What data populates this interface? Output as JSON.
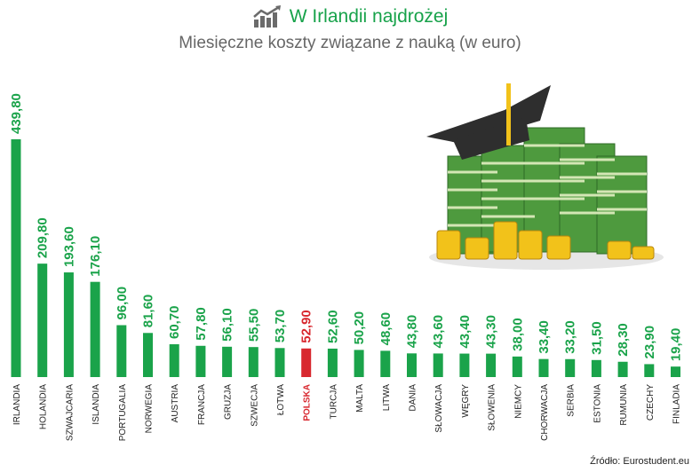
{
  "title": "W Irlandii najdrożej",
  "subtitle": "Miesięczne koszty związane z nauką (w euro)",
  "source": "Źródło: Eurostudent.eu",
  "icons": {
    "title_icon": "chart-growth-icon",
    "illustration": "money-stack-graduation-cap-icon"
  },
  "colors": {
    "bar": "#1aa34a",
    "highlight": "#d8282f",
    "title": "#17a24a",
    "label_text": "#222222"
  },
  "chart_data": {
    "type": "bar",
    "title": "W Irlandii najdrożej",
    "subtitle": "Miesięczne koszty związane z nauką (w euro)",
    "categories": [
      "IRLANDIA",
      "HOLANDIA",
      "SZWAJCARIA",
      "ISLANDIA",
      "PORTUGALIA",
      "NORWEGIA",
      "AUSTRIA",
      "FRANCJA",
      "GRUZJA",
      "SZWECJA",
      "ŁOTWA",
      "POLSKA",
      "TURCJA",
      "MALTA",
      "LITWA",
      "DANIA",
      "SŁOWACJA",
      "WĘGRY",
      "SŁOWENIA",
      "NIEMCY",
      "CHORWACJA",
      "SERBIA",
      "ESTONIA",
      "RUMUNIA",
      "CZECHY",
      "FINLADIA"
    ],
    "values": [
      439.8,
      209.8,
      193.6,
      176.1,
      96.0,
      81.6,
      60.7,
      57.8,
      56.1,
      55.5,
      53.7,
      52.9,
      52.6,
      50.2,
      48.6,
      43.8,
      43.6,
      43.4,
      43.3,
      38.0,
      33.4,
      33.2,
      31.5,
      28.3,
      23.9,
      19.4
    ],
    "value_labels": [
      "439,80",
      "209,80",
      "193,60",
      "176,10",
      "96,00",
      "81,60",
      "60,70",
      "57,80",
      "56,10",
      "55,50",
      "53,70",
      "52,90",
      "52,60",
      "50,20",
      "48,60",
      "43,80",
      "43,60",
      "43,40",
      "43,30",
      "38,00",
      "33,40",
      "33,20",
      "31,50",
      "28,30",
      "23,90",
      "19,40"
    ],
    "highlight": "POLSKA",
    "ylim": [
      0,
      439.8
    ],
    "grid": false,
    "legend": "none"
  }
}
